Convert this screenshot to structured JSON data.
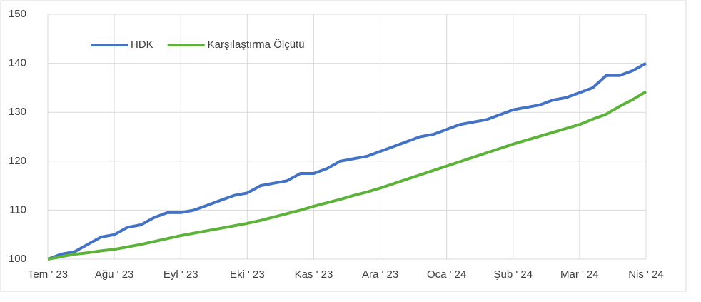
{
  "chart_data": {
    "type": "line",
    "categories": [
      "Tem ' 23",
      null,
      null,
      null,
      null,
      "Ağu ' 23",
      null,
      null,
      null,
      null,
      "Eyl ' 23",
      null,
      null,
      null,
      null,
      "Eki ' 23",
      null,
      null,
      null,
      null,
      "Kas ' 23",
      null,
      null,
      null,
      null,
      "Ara ' 23",
      null,
      null,
      null,
      null,
      "Oca ' 24",
      null,
      null,
      null,
      null,
      "Şub ' 24",
      null,
      null,
      null,
      null,
      "Mar ' 24",
      null,
      null,
      null,
      null,
      "Nis ' 24"
    ],
    "series": [
      {
        "name": "HDK",
        "color": "#4472c4",
        "values": [
          100,
          101,
          101.5,
          103,
          104.5,
          105,
          106.5,
          107,
          108.5,
          109.5,
          109.5,
          110,
          111,
          112,
          113,
          113.5,
          115,
          115.5,
          116,
          117.5,
          117.5,
          118.5,
          120,
          120.5,
          121,
          122,
          123,
          124,
          125,
          125.5,
          126.5,
          127.5,
          128,
          128.5,
          129.5,
          130.5,
          131,
          131.5,
          132.5,
          133,
          134,
          135,
          137.5,
          137.5,
          138.5,
          140
        ]
      },
      {
        "name": "Karşılaştırma Ölçütü",
        "color": "#5db33a",
        "values": [
          100,
          100.5,
          101,
          101.3,
          101.7,
          102,
          102.5,
          103,
          103.6,
          104.2,
          104.8,
          105.3,
          105.8,
          106.3,
          106.8,
          107.3,
          107.9,
          108.6,
          109.3,
          110,
          110.8,
          111.5,
          112.2,
          113,
          113.7,
          114.5,
          115.4,
          116.3,
          117.2,
          118.1,
          119,
          119.9,
          120.8,
          121.7,
          122.6,
          123.5,
          124.3,
          125.1,
          125.9,
          126.7,
          127.5,
          128.6,
          129.6,
          131.2,
          132.6,
          134.2
        ]
      }
    ],
    "ylim": [
      100,
      150
    ],
    "yticks": [
      100,
      110,
      120,
      130,
      140,
      150
    ],
    "grid": true,
    "legend": "top-left"
  }
}
